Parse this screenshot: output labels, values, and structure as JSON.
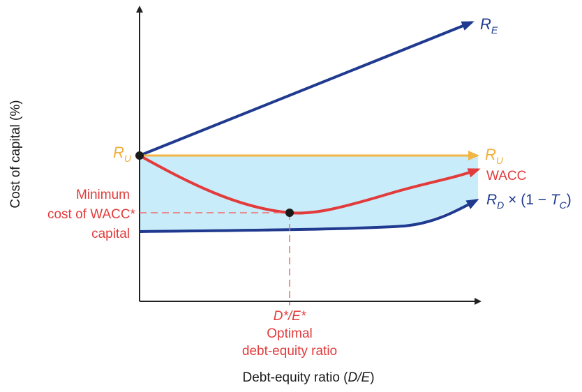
{
  "colors": {
    "axis": "#222222",
    "re_line": "#1f3a8f",
    "ru_line": "#f3b544",
    "wacc_line": "#e23b3b",
    "rd_line": "#1f3a8f",
    "shade": "#c9ecfb",
    "marker": "#1a1a1a",
    "guide": "#ef6b6b"
  },
  "axes": {
    "y_label": "Cost of capital (%)",
    "x_label_main": "Debt-equity ratio (",
    "x_label_var": "D/E",
    "x_label_close": ")"
  },
  "series_labels": {
    "re": "R",
    "re_sub": "E",
    "ru_left": "R",
    "ru_left_sub": "U",
    "ru_right": "R",
    "ru_right_sub": "U",
    "wacc": "WACC",
    "rd": "R",
    "rd_sub": "D",
    "rd_mid": " × (1 − ",
    "rd_t": "T",
    "rd_t_sub": "C",
    "rd_end": ")"
  },
  "annotations": {
    "minimum_line1": "Minimum",
    "minimum_line2_left": "cost of",
    "minimum_line2_right": "WACC*",
    "minimum_line3": "capital",
    "optimal_ratio": "D*/E*",
    "optimal_line1": "Optimal",
    "optimal_line2": "debt-equity ratio"
  }
}
